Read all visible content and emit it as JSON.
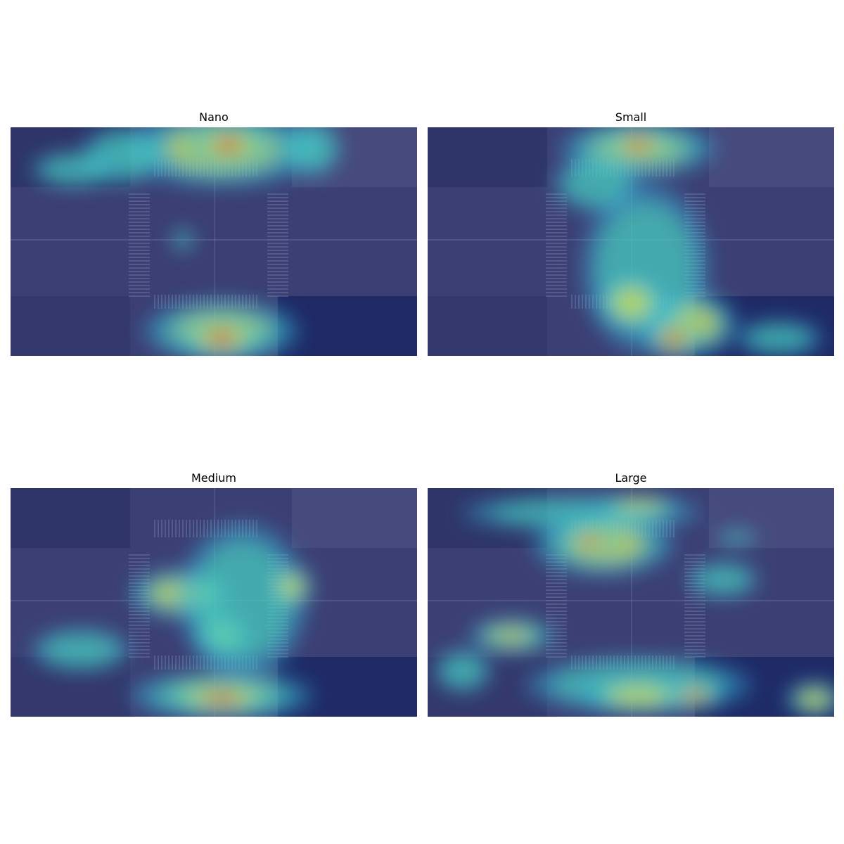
{
  "figure": {
    "panels": [
      {
        "title": "Nano"
      },
      {
        "title": "Small"
      },
      {
        "title": "Medium"
      },
      {
        "title": "Large"
      }
    ]
  },
  "colors": {
    "road": "#3c3f73",
    "overlay_low": "#2b2f8f",
    "heat_cyan": "#3ad7d0",
    "heat_yellow": "#e7df3f",
    "heat_red": "#d8281f"
  }
}
